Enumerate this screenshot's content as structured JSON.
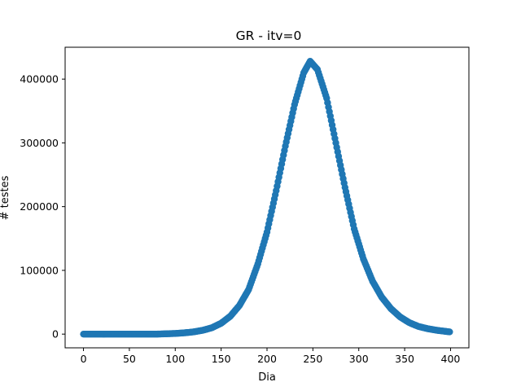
{
  "chart_data": {
    "type": "scatter",
    "title": "GR - itv=0",
    "xlabel": "Dia",
    "ylabel": "# testes",
    "xlim": [
      -20,
      420
    ],
    "ylim": [
      -21500,
      450000
    ],
    "xticks": [
      "0",
      "50",
      "100",
      "150",
      "200",
      "250",
      "300",
      "350",
      "400"
    ],
    "yticks": [
      "0",
      "100000",
      "200000",
      "300000",
      "400000"
    ],
    "grid": false,
    "marker_color": "#1f77b4",
    "series": [
      {
        "x_start": 0,
        "x_end": 399,
        "points": [
          [
            0,
            0
          ],
          [
            20,
            0
          ],
          [
            40,
            0
          ],
          [
            60,
            0
          ],
          [
            80,
            0
          ],
          [
            90,
            500
          ],
          [
            100,
            1000
          ],
          [
            110,
            2000
          ],
          [
            120,
            3500
          ],
          [
            130,
            6000
          ],
          [
            140,
            10000
          ],
          [
            150,
            17000
          ],
          [
            160,
            28000
          ],
          [
            170,
            45000
          ],
          [
            180,
            70000
          ],
          [
            190,
            110000
          ],
          [
            200,
            160000
          ],
          [
            210,
            225000
          ],
          [
            220,
            295000
          ],
          [
            230,
            360000
          ],
          [
            240,
            410000
          ],
          [
            247,
            428000
          ],
          [
            255,
            415000
          ],
          [
            265,
            370000
          ],
          [
            275,
            300000
          ],
          [
            285,
            230000
          ],
          [
            295,
            165000
          ],
          [
            305,
            118000
          ],
          [
            315,
            83000
          ],
          [
            325,
            58000
          ],
          [
            335,
            40000
          ],
          [
            345,
            27000
          ],
          [
            355,
            18000
          ],
          [
            365,
            12000
          ],
          [
            375,
            8500
          ],
          [
            385,
            6000
          ],
          [
            399,
            3500
          ]
        ]
      }
    ]
  }
}
